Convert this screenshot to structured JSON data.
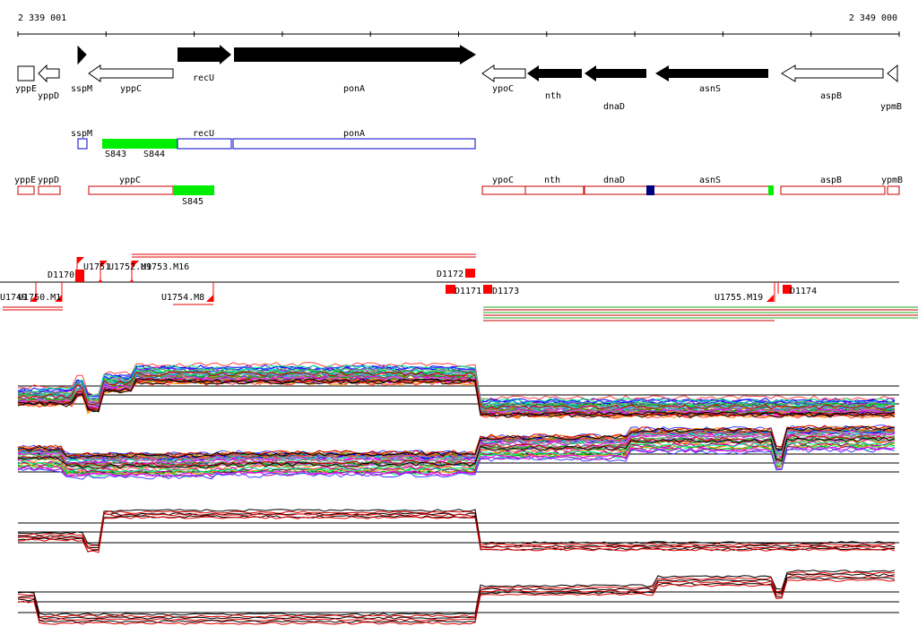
{
  "ruler": {
    "start_label": "2 339 001",
    "end_label": "2 349 000"
  },
  "genes": [
    {
      "name": "yppE",
      "strand": "box"
    },
    {
      "name": "yppD",
      "strand": "-"
    },
    {
      "name": "sspM",
      "strand": "+"
    },
    {
      "name": "yppC",
      "strand": "-"
    },
    {
      "name": "recU",
      "strand": "+"
    },
    {
      "name": "ponA",
      "strand": "+"
    },
    {
      "name": "ypoC",
      "strand": "-"
    },
    {
      "name": "nth",
      "strand": "-"
    },
    {
      "name": "dnaD",
      "strand": "-"
    },
    {
      "name": "asnS",
      "strand": "-"
    },
    {
      "name": "aspB",
      "strand": "-"
    },
    {
      "name": "ypmB",
      "strand": "-"
    }
  ],
  "plus_track": [
    {
      "name": "sspM"
    },
    {
      "name": "recU"
    },
    {
      "name": "ponA"
    }
  ],
  "plus_features": [
    "S843",
    "S844"
  ],
  "minus_track": [
    {
      "name": "yppE"
    },
    {
      "name": "yppD"
    },
    {
      "name": "yppC"
    },
    {
      "name": "ypoC"
    },
    {
      "name": "nth"
    },
    {
      "name": "dnaD"
    },
    {
      "name": "asnS"
    },
    {
      "name": "aspB"
    },
    {
      "name": "ypmB"
    }
  ],
  "minus_features": [
    "S845"
  ],
  "markers": {
    "up": [
      "U1751",
      "U1752.M9",
      "U1753.M16",
      "D1170",
      "D1172"
    ],
    "down": [
      "U1749",
      "U1750.M1",
      "U1754.M8",
      "D1171",
      "D1173",
      "U1755.M19",
      "D1174"
    ]
  },
  "colors": {
    "gene_fill": "#000000",
    "plus_track_outline": "#0000cc",
    "minus_track_outline": "#cc0000",
    "feature_highlight": "#00ee00",
    "marker_red": "#ff0000",
    "dark_blue_block": "#000080",
    "profile_reference": "#000000",
    "profile_red": "#e00000"
  },
  "profile_panels": [
    {
      "name": "plus-strand-tiling",
      "series_colors": [
        "multicolor",
        "black",
        "red"
      ]
    },
    {
      "name": "minus-strand-tiling",
      "series_colors": [
        "multicolor",
        "black",
        "red"
      ]
    },
    {
      "name": "plus-strand-summary",
      "series_colors": [
        "black",
        "red"
      ]
    },
    {
      "name": "minus-strand-summary",
      "series_colors": [
        "black",
        "red"
      ]
    }
  ]
}
